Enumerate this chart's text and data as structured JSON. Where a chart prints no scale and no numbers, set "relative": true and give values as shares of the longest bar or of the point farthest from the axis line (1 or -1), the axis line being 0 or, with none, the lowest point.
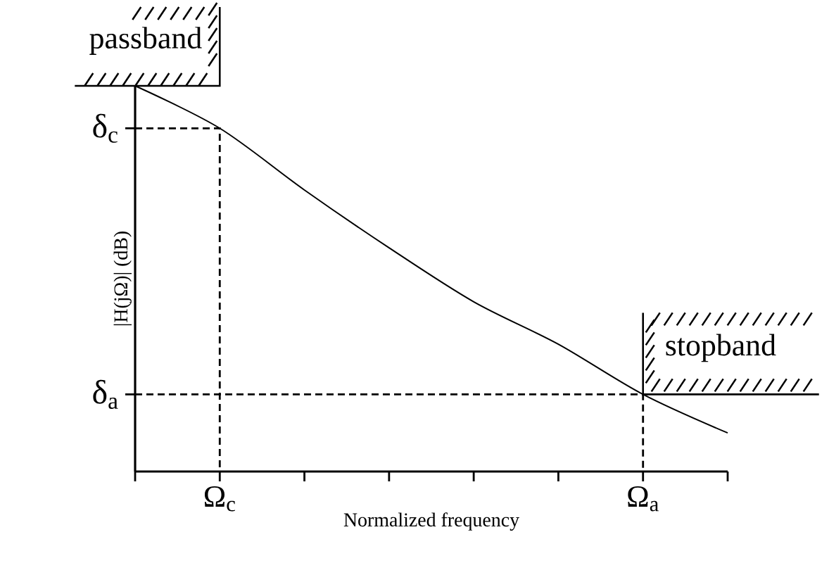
{
  "chart_data": {
    "type": "line",
    "relative": true,
    "xlabel": "Normalized frequency",
    "ylabel": "|H(jΩ)|  (dB)",
    "categories": [
      null,
      "Ω$_{c}$",
      null,
      null,
      null,
      null,
      "Ω$_{a}$",
      null
    ],
    "series": [
      {
        "color": "#000000",
        "values": [
          1,
          0.89,
          0.73,
          0.58,
          0.44,
          0.33,
          0.2,
          0.1
        ]
      }
    ],
    "ref_lines": [
      {
        "axis": "y",
        "value": 0.89,
        "label": "δ$_{c}$",
        "line_style": "dashed"
      },
      {
        "axis": "y",
        "value": 0.2,
        "label": "δ$_{a}$",
        "line_style": "dashed"
      }
    ],
    "annotations": [
      "passband",
      "stopband"
    ],
    "grid": false,
    "marker": "none",
    "line_style": "solid"
  }
}
